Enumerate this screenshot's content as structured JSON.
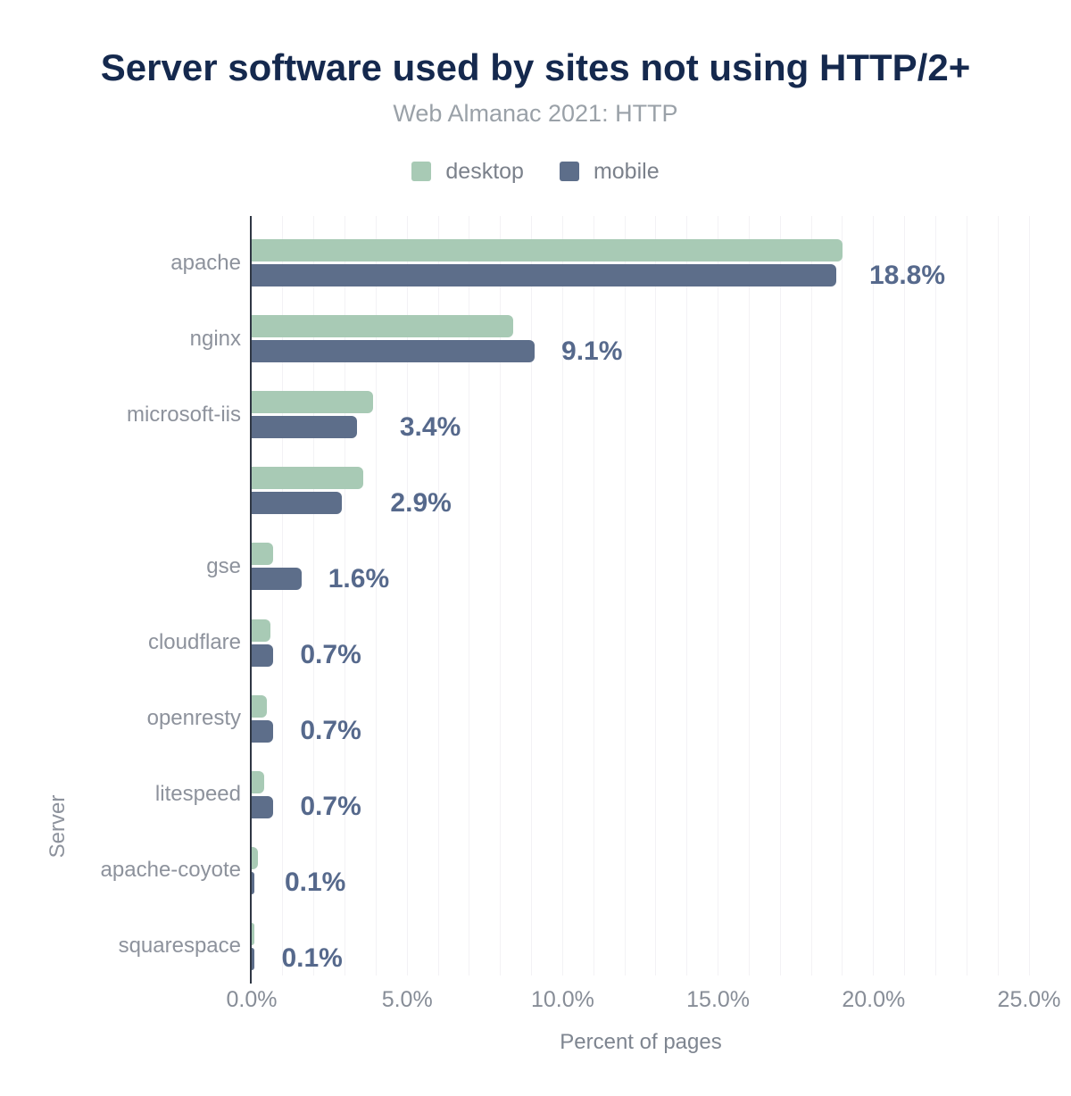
{
  "header": {
    "title": "Server software used by sites not using HTTP/2+",
    "subtitle": "Web Almanac 2021: HTTP"
  },
  "legend": [
    {
      "label": "desktop",
      "color": "#a8cab5"
    },
    {
      "label": "mobile",
      "color": "#5d6e8a"
    }
  ],
  "axes": {
    "x_label": "Percent of pages",
    "y_label": "Server",
    "x_ticks": [
      "0.0%",
      "5.0%",
      "10.0%",
      "15.0%",
      "20.0%",
      "25.0%"
    ]
  },
  "colors": {
    "desktop_bar": "#a8cab5",
    "mobile_bar": "#5d6e8a",
    "title_text": "#15294e",
    "subtitle_text": "#9aa1a8",
    "value_label_text": "#56698c",
    "axis_text": "#8d929c",
    "axis_line": "#2f3744",
    "gridline": "#f3f2f5",
    "background": "#ffffff"
  },
  "chart_data": {
    "type": "bar",
    "orientation": "horizontal",
    "title": "Server software used by sites not using HTTP/2+",
    "subtitle": "Web Almanac 2021: HTTP",
    "xlabel": "Percent of pages",
    "ylabel": "Server",
    "xlim": [
      0,
      25
    ],
    "x_tick_step": 5,
    "grid": "vertical, 1% minor spacing",
    "legend_position": "top",
    "categories": [
      "apache",
      "nginx",
      "microsoft-iis",
      "",
      "gse",
      "cloudflare",
      "openresty",
      "litespeed",
      "apache-coyote",
      "squarespace"
    ],
    "series": [
      {
        "name": "desktop",
        "values": [
          19.0,
          8.4,
          3.9,
          3.6,
          0.7,
          0.6,
          0.5,
          0.4,
          0.2,
          0.1
        ]
      },
      {
        "name": "mobile",
        "values": [
          18.8,
          9.1,
          3.4,
          2.9,
          1.6,
          0.7,
          0.7,
          0.7,
          0.1,
          0.1
        ]
      }
    ],
    "value_labels": [
      "18.8%",
      "9.1%",
      "3.4%",
      "2.9%",
      "1.6%",
      "0.7%",
      "0.7%",
      "0.7%",
      "0.1%",
      "0.1%"
    ],
    "value_label_series": "mobile"
  }
}
